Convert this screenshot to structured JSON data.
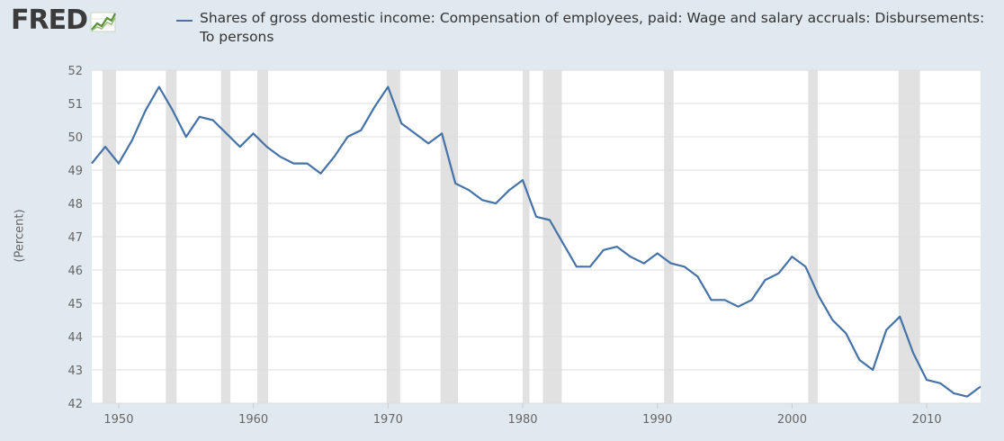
{
  "logo": {
    "text": "FRED",
    "icon": "chart-line-icon"
  },
  "legend": {
    "label": "Shares of gross domestic income: Compensation of employees, paid: Wage and salary accruals: Disbursements: To persons",
    "color": "#4572a7"
  },
  "colors": {
    "plot_background": "#ffffff",
    "page_background": "#e1e9f0",
    "recession": "#e1e1e1",
    "grid": "#dddddd",
    "line": "#4572a7"
  },
  "chart_data": {
    "type": "line",
    "ylabel": "(Percent)",
    "ylim": [
      42,
      52
    ],
    "xlim": [
      1948,
      2014
    ],
    "yticks": [
      42,
      43,
      44,
      45,
      46,
      47,
      48,
      49,
      50,
      51,
      52
    ],
    "xticks": [
      1950,
      1960,
      1970,
      1980,
      1990,
      2000,
      2010
    ],
    "grid": true,
    "legend_position": "top",
    "recessions": [
      [
        1948.8,
        1949.8
      ],
      [
        1953.5,
        1954.3
      ],
      [
        1957.6,
        1958.3
      ],
      [
        1960.3,
        1961.1
      ],
      [
        1969.9,
        1970.9
      ],
      [
        1973.9,
        1975.2
      ],
      [
        1980.0,
        1980.5
      ],
      [
        1981.5,
        1982.9
      ],
      [
        1990.5,
        1991.2
      ],
      [
        2001.2,
        2001.9
      ],
      [
        2007.9,
        2009.5
      ]
    ],
    "series": [
      {
        "name": "Shares of gross domestic income: Compensation of employees, paid: Wage and salary accruals: Disbursements: To persons",
        "x": [
          1948,
          1949,
          1950,
          1951,
          1952,
          1953,
          1954,
          1955,
          1956,
          1957,
          1958,
          1959,
          1960,
          1961,
          1962,
          1963,
          1964,
          1965,
          1966,
          1967,
          1968,
          1969,
          1970,
          1971,
          1972,
          1973,
          1974,
          1975,
          1976,
          1977,
          1978,
          1979,
          1980,
          1981,
          1982,
          1983,
          1984,
          1985,
          1986,
          1987,
          1988,
          1989,
          1990,
          1991,
          1992,
          1993,
          1994,
          1995,
          1996,
          1997,
          1998,
          1999,
          2000,
          2001,
          2002,
          2003,
          2004,
          2005,
          2006,
          2007,
          2008,
          2009,
          2010,
          2011,
          2012,
          2013,
          2014
        ],
        "values": [
          49.2,
          49.7,
          49.2,
          49.9,
          50.8,
          51.5,
          50.8,
          50.0,
          50.6,
          50.5,
          50.1,
          49.7,
          50.1,
          49.7,
          49.4,
          49.2,
          49.2,
          48.9,
          49.4,
          50.0,
          50.2,
          50.9,
          51.5,
          50.4,
          50.1,
          49.8,
          50.1,
          48.6,
          48.4,
          48.1,
          48.0,
          48.4,
          48.7,
          47.6,
          47.5,
          46.8,
          46.1,
          46.1,
          46.6,
          46.7,
          46.4,
          46.2,
          46.5,
          46.2,
          46.1,
          45.8,
          45.1,
          45.1,
          44.9,
          45.1,
          45.7,
          45.9,
          46.4,
          46.1,
          45.2,
          44.5,
          44.1,
          43.3,
          43.0,
          44.2,
          44.6,
          43.5,
          42.7,
          42.6,
          42.3,
          42.2,
          42.5
        ]
      }
    ]
  }
}
